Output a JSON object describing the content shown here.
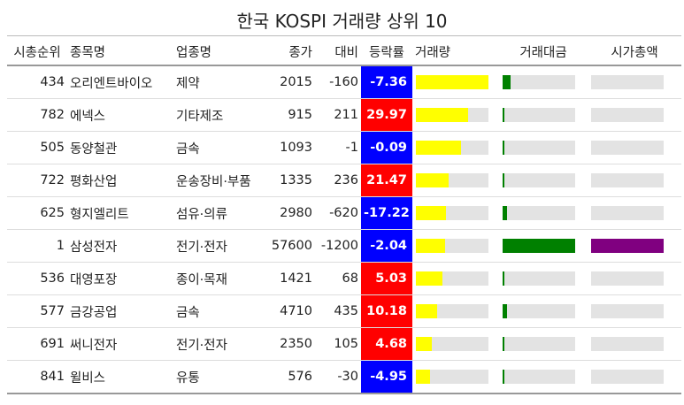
{
  "title": "한국 KOSPI 거래량 상위 10",
  "columns": {
    "rank": "시총순위",
    "name": "종목명",
    "sector": "업종명",
    "close": "종가",
    "diff": "대비",
    "change": "등락률",
    "volume": "거래량",
    "value": "거래대금",
    "mktcap": "시가총액"
  },
  "colors": {
    "up": "#ff0000",
    "down": "#0000ff",
    "volume_bar": "#ffff00",
    "value_bar": "#008000",
    "mktcap_bar": "#800080",
    "track": "#e3e3e3"
  },
  "rows": [
    {
      "rank": "434",
      "name": "오리엔트바이오",
      "sector": "제약",
      "close": "2015",
      "diff": "-160",
      "change": "-7.36",
      "direction": "down",
      "volume_frac": 1.0,
      "value_frac": 0.11,
      "mktcap_frac": 0.0
    },
    {
      "rank": "782",
      "name": "에넥스",
      "sector": "기타제조",
      "close": "915",
      "diff": "211",
      "change": "29.97",
      "direction": "up",
      "volume_frac": 0.72,
      "value_frac": 0.03,
      "mktcap_frac": 0.0
    },
    {
      "rank": "505",
      "name": "동양철관",
      "sector": "금속",
      "close": "1093",
      "diff": "-1",
      "change": "-0.09",
      "direction": "down",
      "volume_frac": 0.62,
      "value_frac": 0.02,
      "mktcap_frac": 0.0
    },
    {
      "rank": "722",
      "name": "평화산업",
      "sector": "운송장비·부품",
      "close": "1335",
      "diff": "236",
      "change": "21.47",
      "direction": "up",
      "volume_frac": 0.45,
      "value_frac": 0.03,
      "mktcap_frac": 0.0
    },
    {
      "rank": "625",
      "name": "형지엘리트",
      "sector": "섬유·의류",
      "close": "2980",
      "diff": "-620",
      "change": "-17.22",
      "direction": "down",
      "volume_frac": 0.42,
      "value_frac": 0.06,
      "mktcap_frac": 0.0
    },
    {
      "rank": "1",
      "name": "삼성전자",
      "sector": "전기·전자",
      "close": "57600",
      "diff": "-1200",
      "change": "-2.04",
      "direction": "down",
      "volume_frac": 0.4,
      "value_frac": 1.0,
      "mktcap_frac": 1.0
    },
    {
      "rank": "536",
      "name": "대영포장",
      "sector": "종이·목재",
      "close": "1421",
      "diff": "68",
      "change": "5.03",
      "direction": "up",
      "volume_frac": 0.37,
      "value_frac": 0.03,
      "mktcap_frac": 0.0
    },
    {
      "rank": "577",
      "name": "금강공업",
      "sector": "금속",
      "close": "4710",
      "diff": "435",
      "change": "10.18",
      "direction": "up",
      "volume_frac": 0.29,
      "value_frac": 0.06,
      "mktcap_frac": 0.0
    },
    {
      "rank": "691",
      "name": "써니전자",
      "sector": "전기·전자",
      "close": "2350",
      "diff": "105",
      "change": "4.68",
      "direction": "up",
      "volume_frac": 0.22,
      "value_frac": 0.03,
      "mktcap_frac": 0.0
    },
    {
      "rank": "841",
      "name": "윌비스",
      "sector": "유통",
      "close": "576",
      "diff": "-30",
      "change": "-4.95",
      "direction": "down",
      "volume_frac": 0.2,
      "value_frac": 0.01,
      "mktcap_frac": 0.0
    }
  ]
}
